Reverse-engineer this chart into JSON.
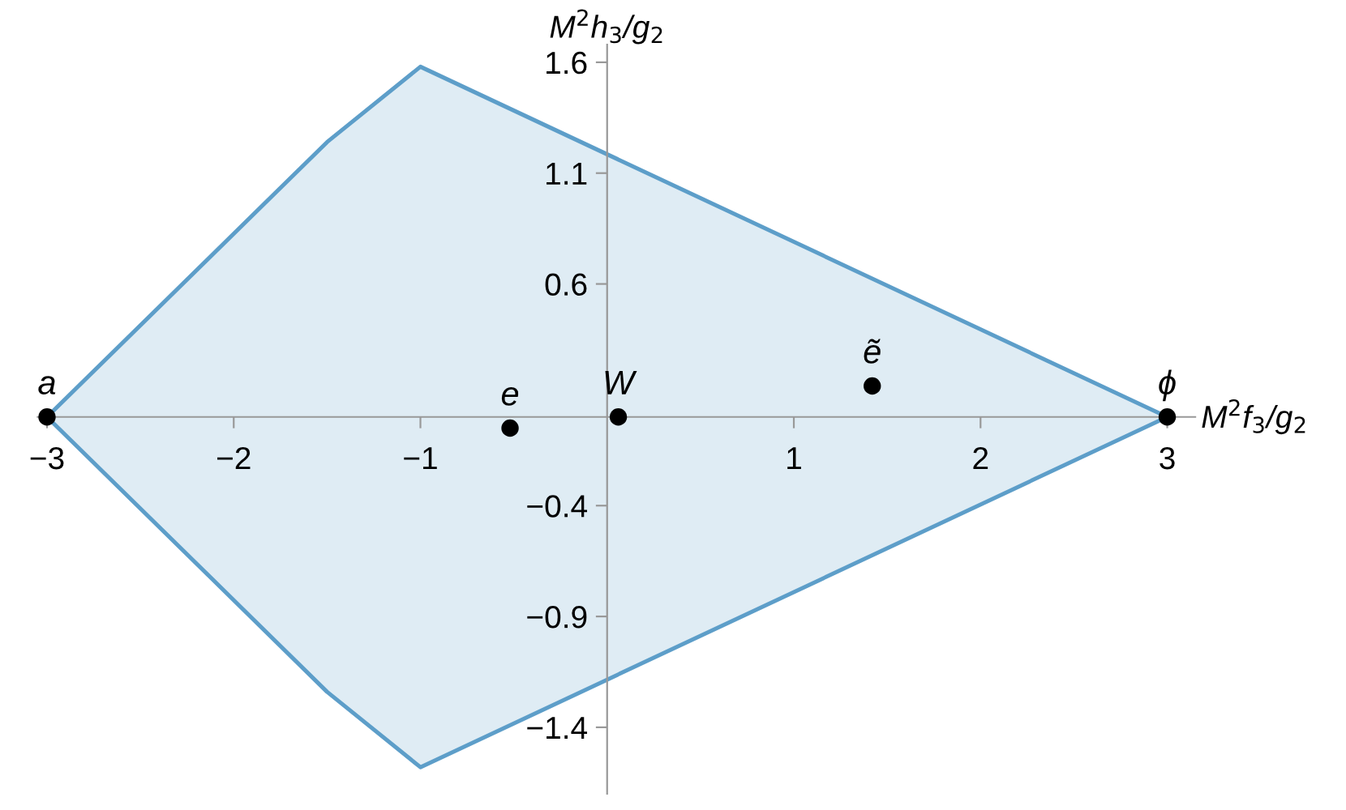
{
  "chart_data": {
    "type": "area",
    "xlabel": "M$^{2}$f$_{3}$/g$_{2}$",
    "ylabel": "M$^{2}$h$_{3}$/g$_{2}$",
    "series": [
      {
        "color": "#5d9ec9",
        "x": [
          -3,
          -1.5,
          -1,
          3,
          -1,
          -1.5,
          -3
        ],
        "values": [
          0,
          1.24,
          1.58,
          0,
          -1.58,
          -1.24,
          0
        ]
      },
      {
        "type": "scatter",
        "marker": "circle",
        "color": "#000000",
        "x": [
          -3,
          -0.52,
          0.06,
          1.42,
          3
        ],
        "values": [
          0,
          -0.05,
          0,
          0.14,
          0
        ]
      }
    ],
    "annotations": [
      {
        "text": "a",
        "x": -3,
        "y": 0
      },
      {
        "text": "e",
        "x": -0.52,
        "y": -0.05
      },
      {
        "text": "W",
        "x": 0.06,
        "y": 0
      },
      {
        "text": "ẽ",
        "x": 1.42,
        "y": 0.14
      },
      {
        "text": "ϕ",
        "x": 3,
        "y": 0
      }
    ],
    "xlim": [
      -3.05,
      3.15
    ],
    "ylim": [
      -1.7,
      1.68
    ],
    "xticks": [
      -3,
      -2,
      -1,
      1,
      2,
      3
    ],
    "yticks": [
      -1.4,
      -0.9,
      -0.4,
      0.6,
      1.1,
      1.6
    ],
    "grid": false,
    "legend": false
  }
}
